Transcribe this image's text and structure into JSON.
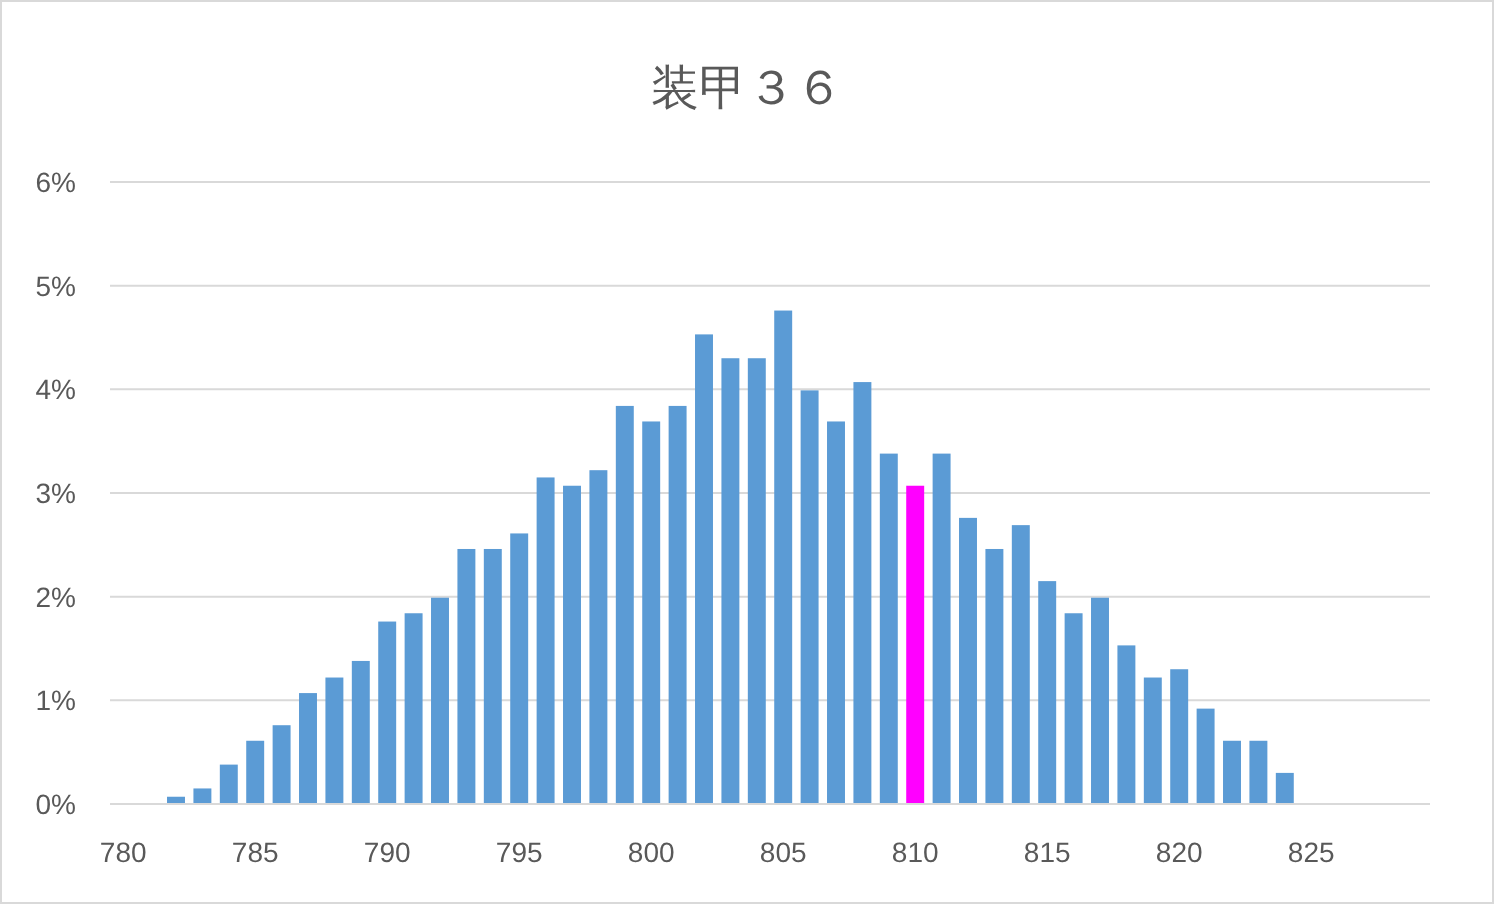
{
  "chart_data": {
    "type": "bar",
    "title": "装甲３６",
    "categories": [
      "780",
      null,
      null,
      null,
      null,
      "785",
      null,
      null,
      null,
      null,
      "790",
      null,
      null,
      null,
      null,
      "795",
      null,
      null,
      null,
      null,
      "800",
      null,
      null,
      null,
      null,
      "805",
      null,
      null,
      null,
      null,
      "810",
      null,
      null,
      null,
      null,
      "815",
      null,
      null,
      null,
      null,
      "820",
      null,
      null,
      null,
      null,
      "825",
      null,
      null,
      null,
      null
    ],
    "values": [
      0,
      0,
      0.07,
      0.15,
      0.38,
      0.61,
      0.76,
      1.07,
      1.22,
      1.38,
      1.76,
      1.84,
      1.99,
      2.46,
      2.46,
      2.61,
      3.15,
      3.07,
      3.22,
      3.84,
      3.69,
      3.84,
      4.53,
      4.3,
      4.3,
      4.76,
      3.99,
      3.69,
      4.07,
      3.38,
      3.07,
      3.38,
      2.76,
      2.46,
      2.69,
      2.15,
      1.84,
      1.99,
      1.53,
      1.22,
      1.3,
      0.92,
      0.61,
      0.61,
      0.3,
      0,
      0,
      0,
      0,
      0
    ],
    "colors": [
      "#5b9bd5",
      "#5b9bd5",
      "#5b9bd5",
      "#5b9bd5",
      "#5b9bd5",
      "#5b9bd5",
      "#5b9bd5",
      "#5b9bd5",
      "#5b9bd5",
      "#5b9bd5",
      "#5b9bd5",
      "#5b9bd5",
      "#5b9bd5",
      "#5b9bd5",
      "#5b9bd5",
      "#5b9bd5",
      "#5b9bd5",
      "#5b9bd5",
      "#5b9bd5",
      "#5b9bd5",
      "#5b9bd5",
      "#5b9bd5",
      "#5b9bd5",
      "#5b9bd5",
      "#5b9bd5",
      "#5b9bd5",
      "#5b9bd5",
      "#5b9bd5",
      "#5b9bd5",
      "#5b9bd5",
      "#ff00ff",
      "#5b9bd5",
      "#5b9bd5",
      "#5b9bd5",
      "#5b9bd5",
      "#5b9bd5",
      "#5b9bd5",
      "#5b9bd5",
      "#5b9bd5",
      "#5b9bd5",
      "#5b9bd5",
      "#5b9bd5",
      "#5b9bd5",
      "#5b9bd5",
      "#5b9bd5",
      "#5b9bd5",
      "#5b9bd5",
      "#5b9bd5",
      "#5b9bd5",
      "#5b9bd5"
    ],
    "ylim": [
      0,
      6
    ],
    "yticks": [
      {
        "value": 0,
        "label": "0%"
      },
      {
        "value": 1,
        "label": "1%"
      },
      {
        "value": 2,
        "label": "2%"
      },
      {
        "value": 3,
        "label": "3%"
      },
      {
        "value": 4,
        "label": "4%"
      },
      {
        "value": 5,
        "label": "5%"
      },
      {
        "value": 6,
        "label": "6%"
      }
    ],
    "grid": "y"
  }
}
